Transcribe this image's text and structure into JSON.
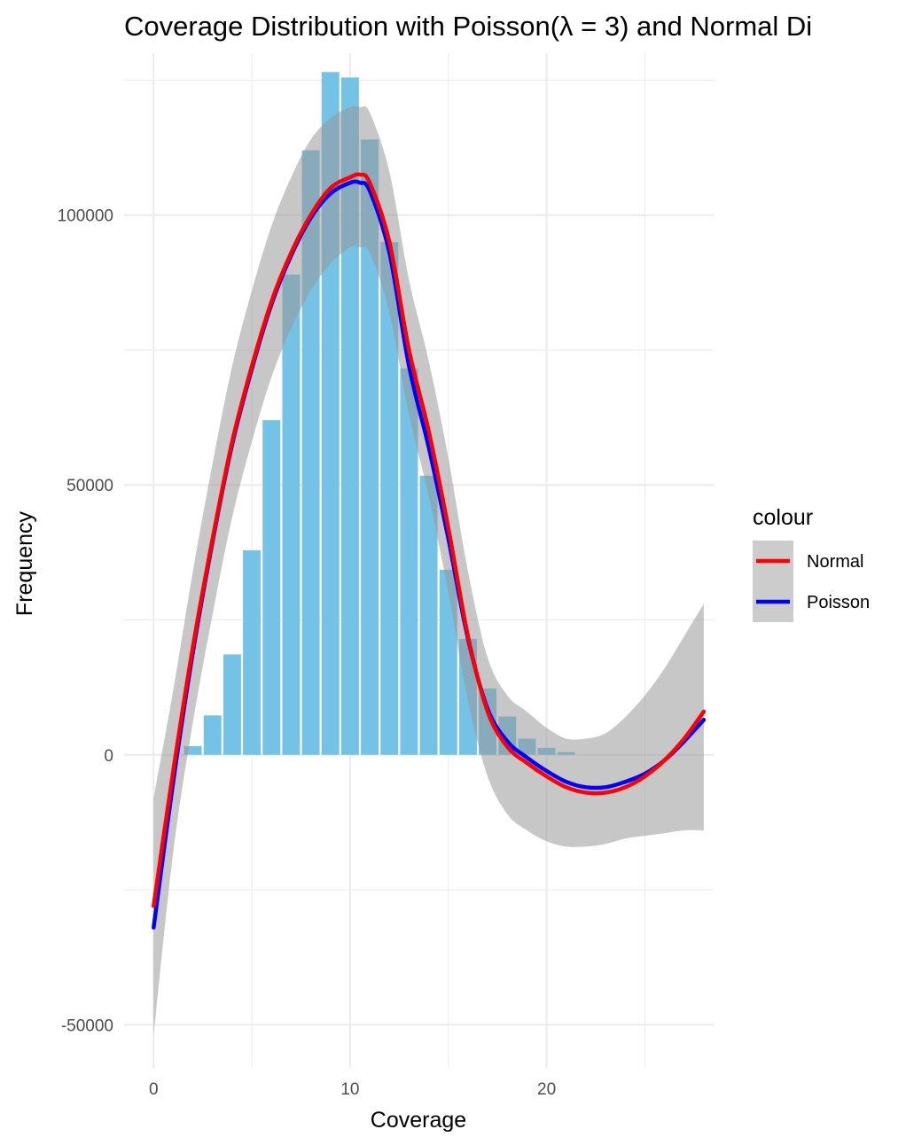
{
  "chart_data": {
    "type": "bar",
    "title": "Coverage Distribution with Poisson(λ = 3) and Normal Di",
    "xlabel": "Coverage",
    "ylabel": "Frequency",
    "xlim": [
      -1.5,
      28.5
    ],
    "ylim": [
      -58000,
      130000
    ],
    "x_ticks": [
      0,
      10,
      20
    ],
    "x_tick_labels": [
      "0",
      "10",
      "20"
    ],
    "y_ticks": [
      -50000,
      0,
      50000,
      100000
    ],
    "y_tick_labels": [
      "-50000",
      "0",
      "50000",
      "100000"
    ],
    "grid": true,
    "bars": {
      "color": "#74c2e6",
      "x": [
        1,
        2,
        3,
        4,
        5,
        6,
        7,
        8,
        9,
        10,
        11,
        12,
        13,
        14,
        15,
        16,
        17,
        18,
        19,
        20,
        21
      ],
      "values": [
        0,
        1600,
        7300,
        18600,
        37900,
        62000,
        89000,
        112000,
        126500,
        125500,
        114000,
        95000,
        71600,
        51700,
        34300,
        21500,
        12300,
        7100,
        3000,
        1300,
        500
      ]
    },
    "series": [
      {
        "name": "Normal",
        "color": "#ff0000",
        "x": [
          0,
          1,
          2,
          3,
          4,
          5,
          6,
          7,
          8,
          9,
          10,
          10.5,
          11,
          12,
          13,
          14,
          15,
          16,
          17,
          18,
          19,
          20,
          21,
          22,
          23,
          24,
          25,
          26,
          27,
          28
        ],
        "y": [
          -28000,
          -3000,
          20000,
          40000,
          58000,
          72000,
          84000,
          93000,
          100000,
          105000,
          107000,
          107500,
          106000,
          95000,
          75000,
          60000,
          42000,
          22000,
          8000,
          1500,
          -1500,
          -4000,
          -6000,
          -7000,
          -7000,
          -6000,
          -4000,
          -1000,
          3000,
          8000
        ],
        "band_lower": [
          -52000,
          -18000,
          6000,
          26000,
          44000,
          58000,
          70000,
          79000,
          86000,
          91000,
          94000,
          94000,
          93000,
          82000,
          63000,
          48000,
          30000,
          10000,
          -4000,
          -11000,
          -14000,
          -16000,
          -17000,
          -17000,
          -16500,
          -15500,
          -15000,
          -14500,
          -14000,
          -14000
        ],
        "band_upper": [
          -8000,
          12000,
          34000,
          54000,
          72000,
          86000,
          98000,
          107000,
          114000,
          118000,
          120000,
          120000,
          119000,
          108000,
          88000,
          73000,
          55000,
          34000,
          18000,
          11000,
          8000,
          5000,
          3000,
          3000,
          4000,
          7000,
          11000,
          16000,
          22000,
          28000
        ]
      },
      {
        "name": "Poisson",
        "color": "#0000ff",
        "x": [
          0,
          1,
          2,
          3,
          4,
          5,
          6,
          7,
          8,
          9,
          10,
          10.5,
          11,
          12,
          13,
          14,
          15,
          16,
          17,
          18,
          19,
          20,
          21,
          22,
          23,
          24,
          25,
          26,
          27,
          28
        ],
        "y": [
          -32000,
          -5000,
          19000,
          39500,
          57500,
          71500,
          83500,
          92500,
          99500,
          104000,
          106000,
          106000,
          104500,
          93000,
          72000,
          57000,
          40000,
          21500,
          8500,
          2500,
          -500,
          -3000,
          -5000,
          -6000,
          -6000,
          -5000,
          -3500,
          -1000,
          2500,
          6500
        ]
      }
    ],
    "legend": {
      "title": "colour",
      "placement": "right",
      "entries": [
        {
          "label": "Normal",
          "color": "#ff0000"
        },
        {
          "label": "Poisson",
          "color": "#0000ff"
        }
      ]
    }
  }
}
